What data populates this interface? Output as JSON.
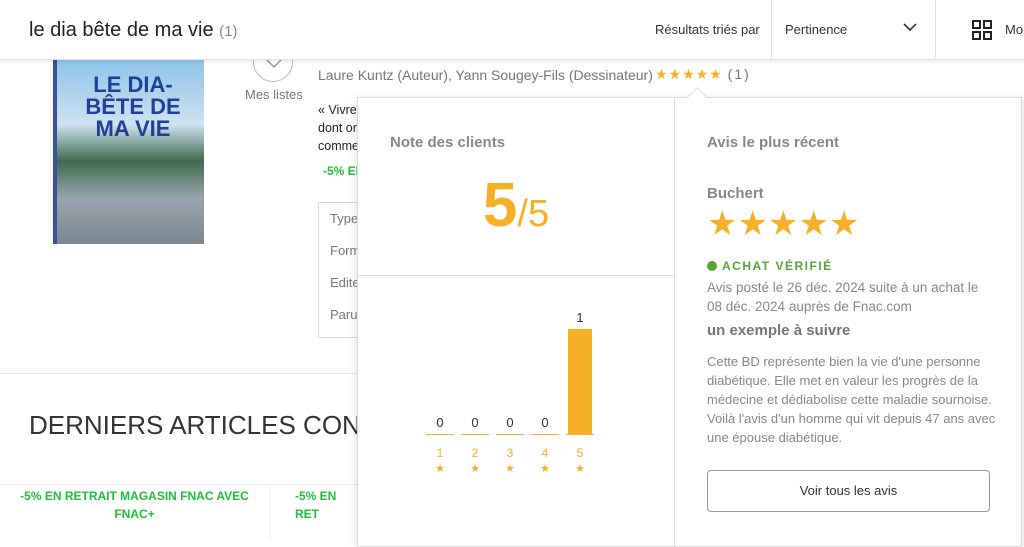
{
  "header": {
    "query": "le dia bête de ma vie",
    "count": "(1)",
    "sort_label": "Résultats triés par",
    "sort_value": "Pertinence",
    "view_label": "Mo"
  },
  "product": {
    "cover_title": "LE DIA-BÊTE DE MA VIE",
    "lists_label": "Mes listes",
    "authors": "Laure Kuntz (Auteur), Yann Sougey-Fils (Dessinateur)",
    "stars": "★★★★★",
    "rating_count": "(1)",
    "desc_lines": [
      "« Vivre",
      "dont or",
      "comme"
    ],
    "promo": "-5% El",
    "info_labels": [
      "Type",
      "Form",
      "Edite",
      "Paru"
    ]
  },
  "section": {
    "title": "DERNIERS ARTICLES CON",
    "cards": [
      "-5% EN RETRAIT MAGASIN FNAC AVEC FNAC+",
      "-5% EN RET"
    ]
  },
  "popup": {
    "ratings_title": "Note des clients",
    "score": "5",
    "score_max": "/5",
    "distribution": {
      "labels": [
        "1",
        "2",
        "3",
        "4",
        "5"
      ],
      "counts": [
        0,
        0,
        0,
        0,
        1
      ],
      "star": "★"
    },
    "recent_title": "Avis le plus récent",
    "reviewer": "Buchert",
    "review_stars": "★★★★★",
    "review_rating": 5,
    "verified": "ACHAT VÉRIFIÉ",
    "meta": "Avis posté le 26 déc. 2024 suite à un achat le 08 déc. 2024 auprès de Fnac.com",
    "review_title": "un exemple à suivre",
    "review_body": "Cette BD représente bien la vie d'une personne diabétique. Elle met en valeur les progrès de la médecine et dédiabolise cette maladie sournoise. Voilà l'avis d'un homme qui vit depuis 47 ans avec une épouse diabétique.",
    "all_reviews": "Voir tous les avis"
  },
  "colors": {
    "accent": "#f5b027",
    "promo": "#1fbf3b",
    "verified": "#55a630"
  }
}
